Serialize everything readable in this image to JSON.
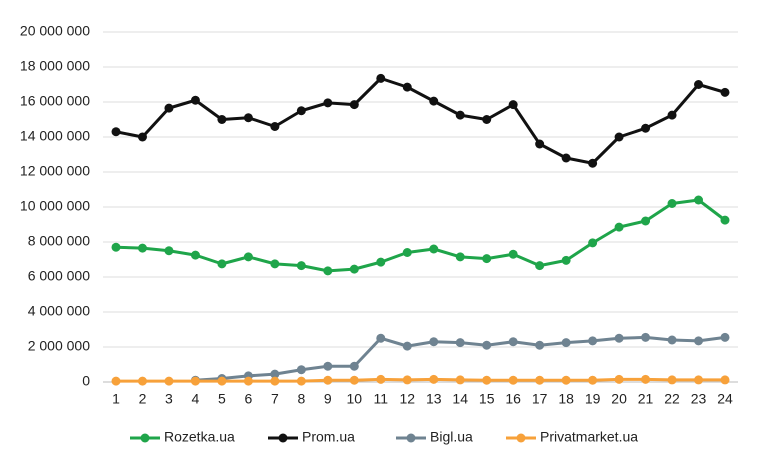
{
  "chart_data": {
    "type": "line",
    "categories": [
      "1",
      "2",
      "3",
      "4",
      "5",
      "6",
      "7",
      "8",
      "9",
      "10",
      "11",
      "12",
      "13",
      "14",
      "15",
      "16",
      "17",
      "18",
      "19",
      "20",
      "21",
      "22",
      "23",
      "24"
    ],
    "series": [
      {
        "name": "Rozetka.ua",
        "color": "#1fa54a",
        "values": [
          7700000,
          7650000,
          7500000,
          7250000,
          6750000,
          7150000,
          6750000,
          6650000,
          6350000,
          6450000,
          6850000,
          7400000,
          7600000,
          7150000,
          7050000,
          7300000,
          6650000,
          6950000,
          7950000,
          8850000,
          9200000,
          10200000,
          10400000,
          9250000
        ]
      },
      {
        "name": "Prom.ua",
        "color": "#111111",
        "values": [
          14300000,
          14000000,
          15650000,
          16100000,
          15000000,
          15100000,
          14600000,
          15500000,
          15950000,
          15850000,
          17350000,
          16850000,
          16050000,
          15250000,
          15000000,
          15850000,
          13600000,
          12800000,
          12500000,
          14000000,
          14500000,
          15250000,
          17000000,
          16550000
        ]
      },
      {
        "name": "Bigl.ua",
        "color": "#6f8391",
        "values": [
          null,
          null,
          null,
          100000,
          200000,
          350000,
          450000,
          700000,
          900000,
          900000,
          2500000,
          2050000,
          2300000,
          2250000,
          2100000,
          2300000,
          2100000,
          2250000,
          2350000,
          2500000,
          2550000,
          2400000,
          2350000,
          2550000
        ]
      },
      {
        "name": "Privatmarket.ua",
        "color": "#f7a13a",
        "values": [
          50000,
          50000,
          50000,
          50000,
          50000,
          50000,
          50000,
          50000,
          100000,
          100000,
          150000,
          120000,
          150000,
          120000,
          100000,
          100000,
          100000,
          100000,
          100000,
          150000,
          150000,
          120000,
          120000,
          120000
        ]
      }
    ],
    "ylim": [
      0,
      20000000
    ],
    "yticks": [
      0,
      {
        "value": 2000000,
        "label": "2 000 000"
      },
      {
        "value": 4000000,
        "label": "4 000 000"
      },
      {
        "value": 6000000,
        "label": "6 000 000"
      },
      {
        "value": 8000000,
        "label": "8 000 000"
      },
      {
        "value": 10000000,
        "label": "10 000 000"
      },
      {
        "value": 12000000,
        "label": "12 000 000"
      },
      {
        "value": 14000000,
        "label": "14 000 000"
      },
      {
        "value": 16000000,
        "label": "16 000 000"
      },
      {
        "value": 18000000,
        "label": "18 000 000"
      },
      {
        "value": 20000000,
        "label": "20 000 000"
      }
    ],
    "grid": true,
    "legend": "bottom"
  }
}
